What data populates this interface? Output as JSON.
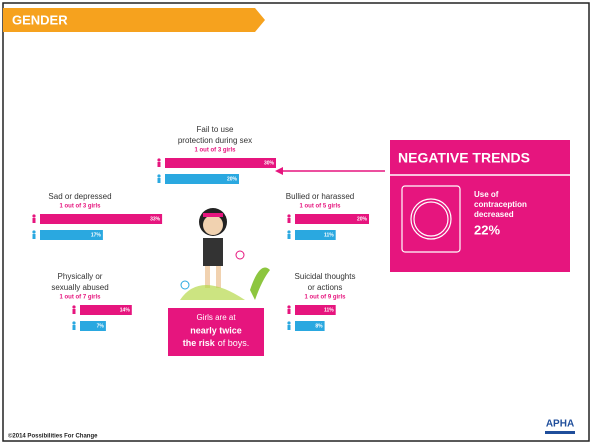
{
  "header": {
    "title": "GENDER"
  },
  "groups": [
    {
      "title": [
        "Fail to use",
        "protection during sex"
      ],
      "subtitle": "1 out of 3 girls",
      "girls": 30,
      "girls_label": "30%",
      "boys": 20,
      "boys_label": "20%"
    },
    {
      "title": [
        "Sad or depressed"
      ],
      "subtitle": "1 out of 3 girls",
      "girls": 33,
      "girls_label": "33%",
      "boys": 17,
      "boys_label": "17%"
    },
    {
      "title": [
        "Bullied or harassed"
      ],
      "subtitle": "1 out of 5 girls",
      "girls": 20,
      "girls_label": "20%",
      "boys": 11,
      "boys_label": "11%"
    },
    {
      "title": [
        "Physically or",
        "sexually abused"
      ],
      "subtitle": "1 out of 7 girls",
      "girls": 14,
      "girls_label": "14%",
      "boys": 7,
      "boys_label": "7%"
    },
    {
      "title": [
        "Suicidal thoughts",
        "or actions"
      ],
      "subtitle": "1 out of 9 girls",
      "girls": 11,
      "girls_label": "11%",
      "boys": 8,
      "boys_label": "8%"
    }
  ],
  "callout": {
    "line1": "Girls are at",
    "line2": "nearly twice",
    "line3_bold": "the risk",
    "line3_rest": "of boys."
  },
  "trends": {
    "title": "NEGATIVE TRENDS",
    "text": [
      "Use of",
      "contraception",
      "decreased"
    ],
    "value": "22%"
  },
  "footer": {
    "copyright": "©2014 Possibilities For Change",
    "logo": "APHA"
  }
}
